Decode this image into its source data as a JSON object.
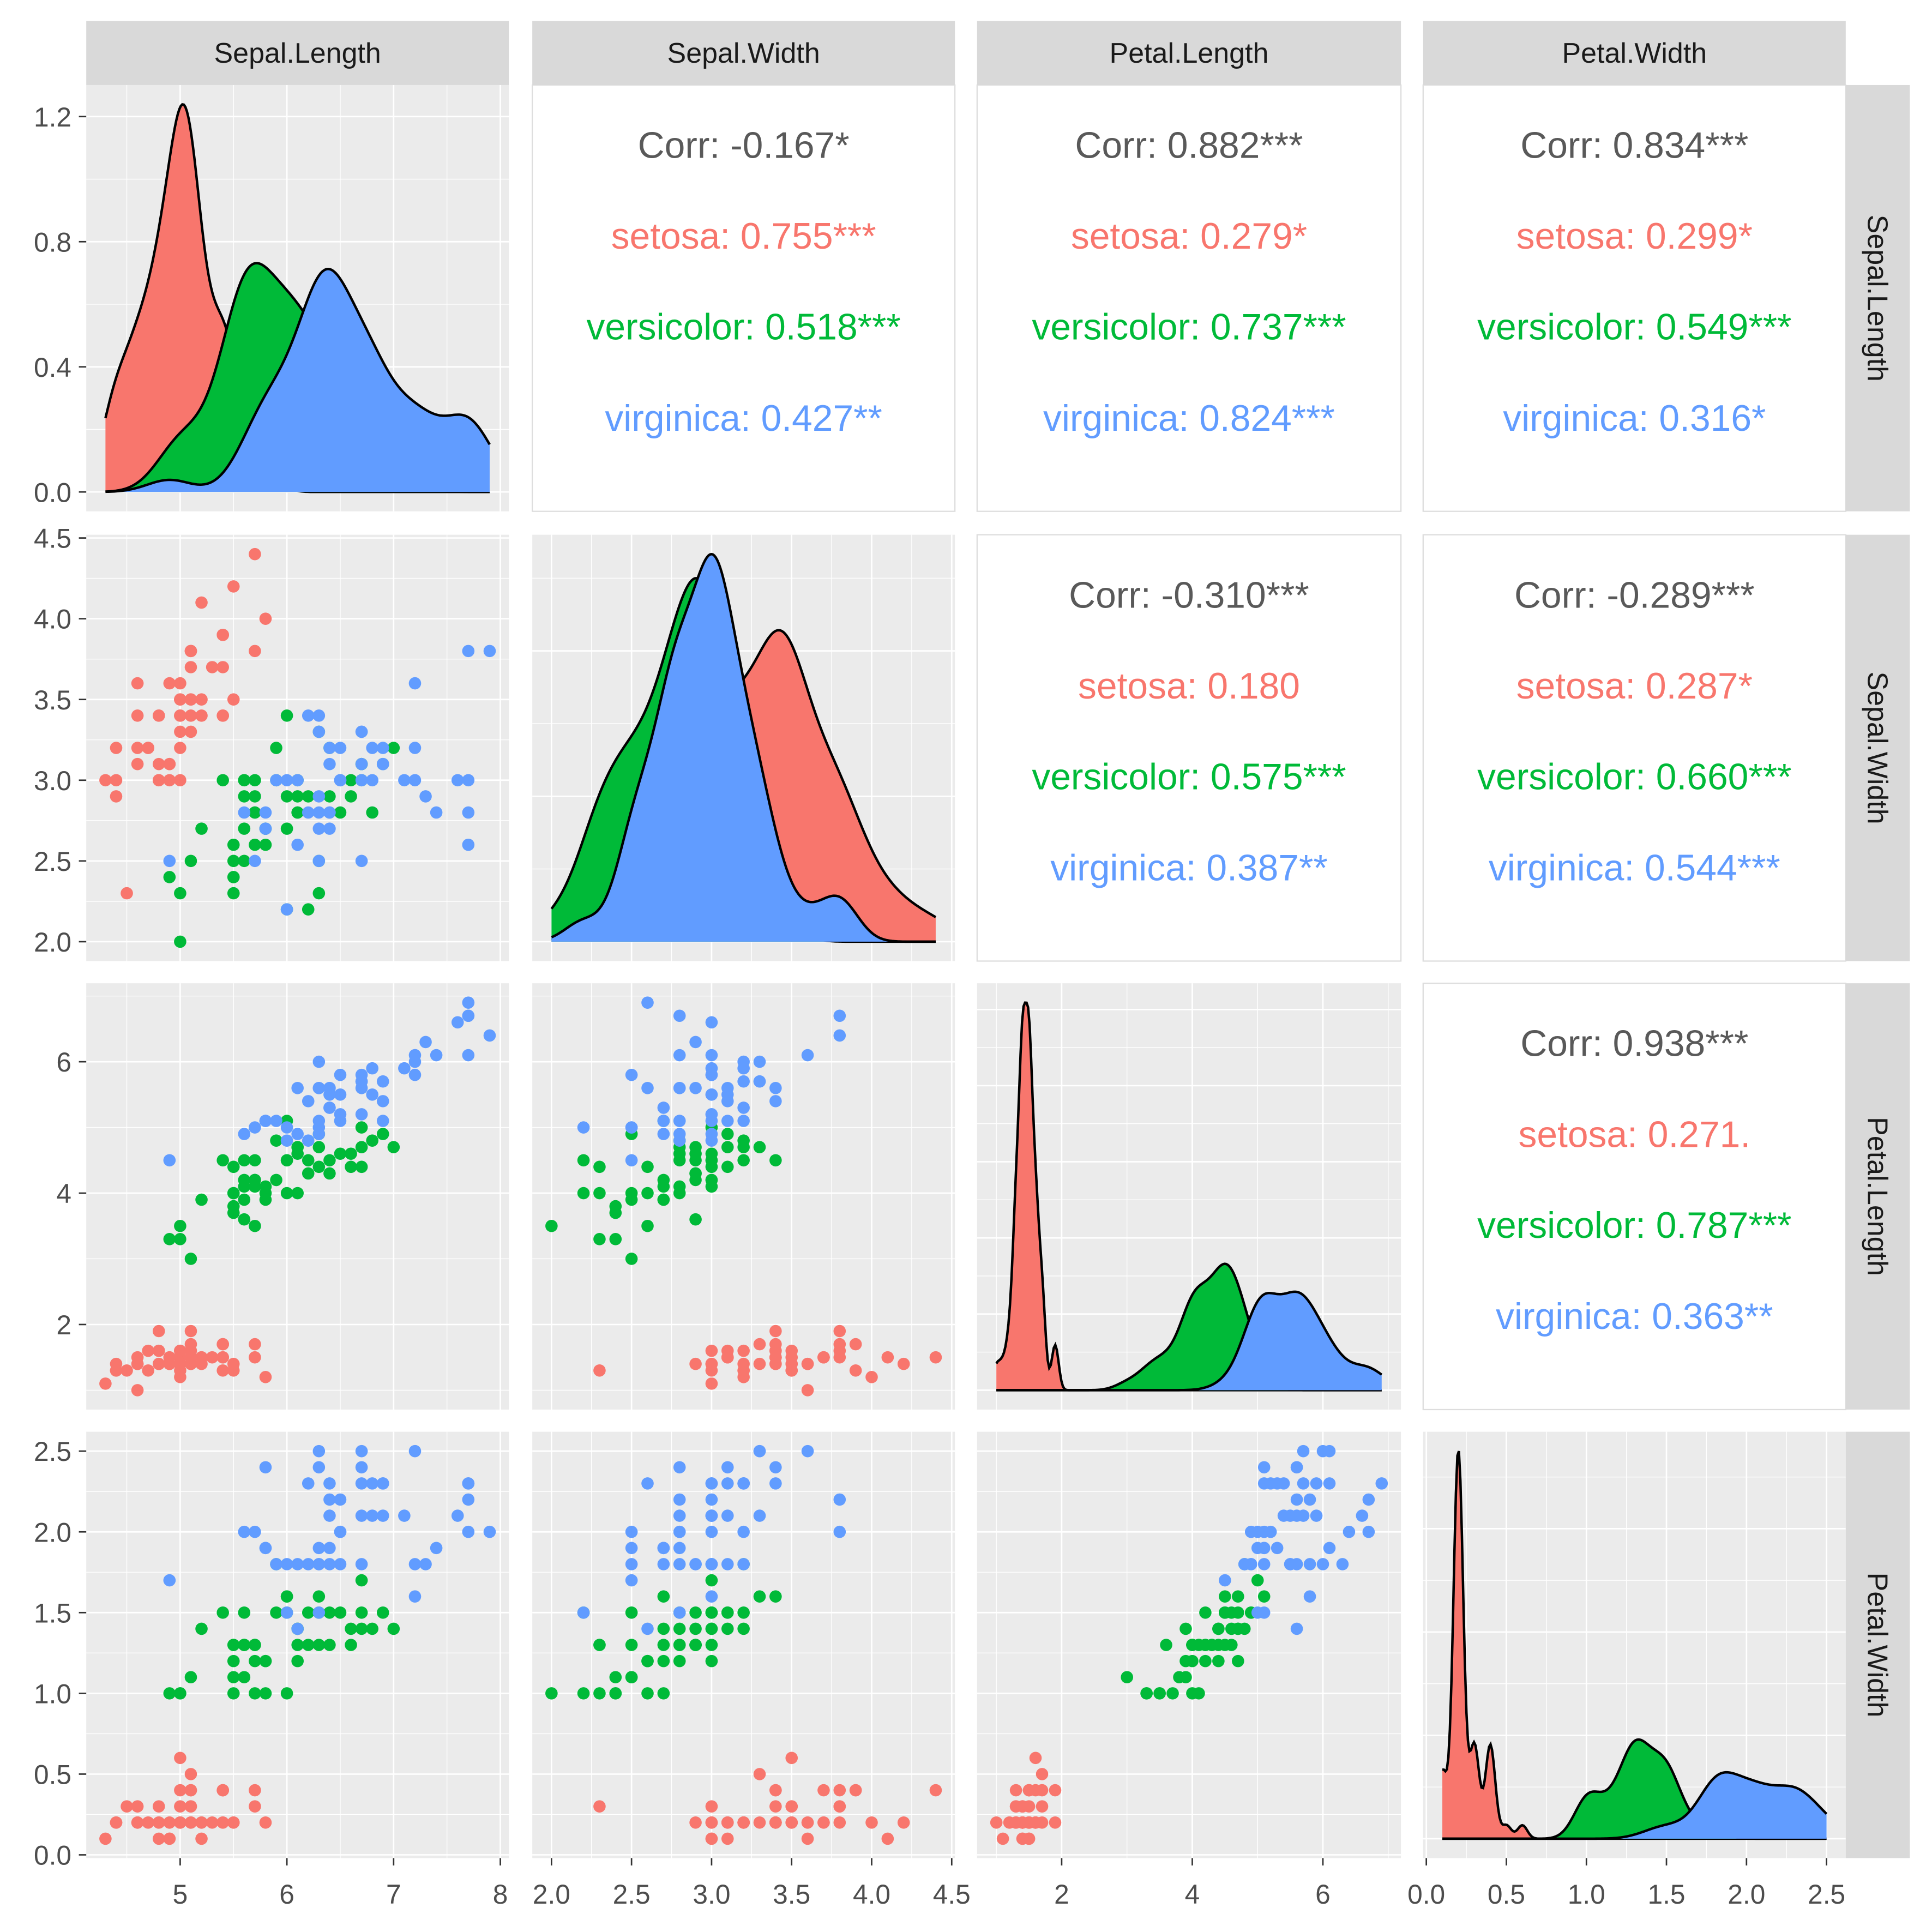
{
  "chart_data": {
    "type": "scatter-matrix",
    "variables": [
      "Sepal.Length",
      "Sepal.Width",
      "Petal.Length",
      "Petal.Width"
    ],
    "species_levels": [
      "setosa",
      "versicolor",
      "virginica"
    ],
    "colors": {
      "setosa": "#F8766D",
      "versicolor": "#00BA38",
      "virginica": "#619CFF",
      "corr_text": "#595959",
      "panel_bg": "#EBEBEB",
      "strip_bg": "#D9D9D9"
    },
    "diagonal": "density",
    "lower": "points",
    "upper": "correlation",
    "ticks": {
      "Sepal.Length": [
        "5",
        "6",
        "7",
        "8"
      ],
      "Sepal.Width": [
        "2.0",
        "2.5",
        "3.0",
        "3.5",
        "4.0",
        "4.5"
      ],
      "Petal.Length": [
        "2",
        "4",
        "6"
      ],
      "Petal.Width": [
        "0.0",
        "0.5",
        "1.0",
        "1.5",
        "2.0",
        "2.5"
      ],
      "density_top_left": [
        "0.0",
        "0.4",
        "0.8",
        "1.2"
      ]
    },
    "correlations": [
      {
        "row": "Sepal.Length",
        "col": "Sepal.Width",
        "lines": [
          "Corr: -0.167*",
          "setosa: 0.755***",
          "versicolor: 0.518***",
          "virginica: 0.427**"
        ]
      },
      {
        "row": "Sepal.Length",
        "col": "Petal.Length",
        "lines": [
          "Corr: 0.882***",
          "setosa: 0.279*",
          "versicolor: 0.737***",
          "virginica: 0.824***"
        ]
      },
      {
        "row": "Sepal.Length",
        "col": "Petal.Width",
        "lines": [
          "Corr: 0.834***",
          "setosa: 0.299*",
          "versicolor: 0.549***",
          "virginica: 0.316*"
        ]
      },
      {
        "row": "Sepal.Width",
        "col": "Petal.Length",
        "lines": [
          "Corr: -0.310***",
          "setosa: 0.180",
          "versicolor: 0.575***",
          "virginica: 0.387**"
        ]
      },
      {
        "row": "Sepal.Width",
        "col": "Petal.Width",
        "lines": [
          "Corr: -0.289***",
          "setosa: 0.287*",
          "versicolor: 0.660***",
          "virginica: 0.544***"
        ]
      },
      {
        "row": "Petal.Length",
        "col": "Petal.Width",
        "lines": [
          "Corr: 0.938***",
          "setosa: 0.271.",
          "versicolor: 0.787***",
          "virginica: 0.363**"
        ]
      }
    ],
    "observations": {
      "Sepal.Length": [
        5.1,
        4.9,
        4.7,
        4.6,
        5.0,
        5.4,
        4.6,
        5.0,
        4.4,
        4.9,
        5.4,
        4.8,
        4.8,
        4.3,
        5.8,
        5.7,
        5.4,
        5.1,
        5.7,
        5.1,
        5.4,
        5.1,
        4.6,
        5.1,
        4.8,
        5.0,
        5.0,
        5.2,
        5.2,
        4.7,
        4.8,
        5.4,
        5.2,
        5.5,
        4.9,
        5.0,
        5.5,
        4.9,
        4.4,
        5.1,
        5.0,
        4.5,
        4.4,
        5.0,
        5.1,
        4.8,
        5.1,
        4.6,
        5.3,
        5.0,
        7.0,
        6.4,
        6.9,
        5.5,
        6.5,
        5.7,
        6.3,
        4.9,
        6.6,
        5.2,
        5.0,
        5.9,
        6.0,
        6.1,
        5.6,
        6.7,
        5.6,
        5.8,
        6.2,
        5.6,
        5.9,
        6.1,
        6.3,
        6.1,
        6.4,
        6.6,
        6.8,
        6.7,
        6.0,
        5.7,
        5.5,
        5.5,
        5.8,
        6.0,
        5.4,
        6.0,
        6.7,
        6.3,
        5.6,
        5.5,
        5.5,
        6.1,
        5.8,
        5.0,
        5.6,
        5.7,
        5.7,
        6.2,
        5.1,
        5.7,
        6.3,
        5.8,
        7.1,
        6.3,
        6.5,
        7.6,
        4.9,
        7.3,
        6.7,
        7.2,
        6.5,
        6.4,
        6.8,
        5.7,
        5.8,
        6.4,
        6.5,
        7.7,
        7.7,
        6.0,
        6.9,
        5.6,
        7.7,
        6.3,
        6.7,
        7.2,
        6.2,
        6.1,
        6.4,
        7.2,
        7.4,
        7.9,
        6.4,
        6.3,
        6.1,
        7.7,
        6.3,
        6.4,
        6.0,
        6.9,
        6.7,
        6.9,
        5.8,
        6.8,
        6.7,
        6.7,
        6.3,
        6.5,
        6.2,
        5.9
      ],
      "Sepal.Width": [
        3.5,
        3.0,
        3.2,
        3.1,
        3.6,
        3.9,
        3.4,
        3.4,
        2.9,
        3.1,
        3.7,
        3.4,
        3.0,
        3.0,
        4.0,
        4.4,
        3.9,
        3.5,
        3.8,
        3.8,
        3.4,
        3.7,
        3.6,
        3.3,
        3.4,
        3.0,
        3.4,
        3.5,
        3.4,
        3.2,
        3.1,
        3.4,
        4.1,
        4.2,
        3.1,
        3.2,
        3.5,
        3.6,
        3.0,
        3.4,
        3.5,
        2.3,
        3.2,
        3.5,
        3.8,
        3.0,
        3.8,
        3.2,
        3.7,
        3.3,
        3.2,
        3.2,
        3.1,
        2.3,
        2.8,
        2.8,
        3.3,
        2.4,
        2.9,
        2.7,
        2.0,
        3.0,
        2.2,
        2.9,
        2.9,
        3.1,
        3.0,
        2.7,
        2.2,
        2.5,
        3.2,
        2.8,
        2.5,
        2.8,
        2.9,
        3.0,
        2.8,
        3.0,
        2.9,
        2.6,
        2.4,
        2.4,
        2.7,
        2.7,
        3.0,
        3.4,
        3.1,
        2.3,
        3.0,
        2.5,
        2.6,
        3.0,
        2.6,
        2.3,
        2.7,
        3.0,
        2.9,
        2.9,
        2.5,
        2.8,
        3.3,
        2.7,
        3.0,
        2.9,
        3.0,
        3.0,
        2.5,
        2.9,
        2.5,
        3.6,
        3.2,
        2.7,
        3.0,
        2.5,
        2.8,
        3.2,
        3.0,
        3.8,
        2.6,
        2.2,
        3.2,
        2.8,
        2.8,
        2.7,
        3.3,
        3.2,
        2.8,
        3.0,
        2.8,
        3.0,
        2.8,
        3.8,
        2.8,
        2.8,
        2.6,
        3.0,
        3.4,
        3.1,
        3.0,
        3.1,
        3.1,
        3.1,
        2.7,
        3.2,
        3.3,
        3.0,
        2.5,
        3.0,
        3.4,
        3.0
      ],
      "Petal.Length": [
        1.4,
        1.4,
        1.3,
        1.5,
        1.4,
        1.7,
        1.4,
        1.5,
        1.4,
        1.5,
        1.5,
        1.6,
        1.4,
        1.1,
        1.2,
        1.5,
        1.3,
        1.4,
        1.7,
        1.5,
        1.7,
        1.5,
        1.0,
        1.7,
        1.9,
        1.6,
        1.6,
        1.5,
        1.4,
        1.6,
        1.6,
        1.5,
        1.5,
        1.4,
        1.5,
        1.2,
        1.3,
        1.4,
        1.3,
        1.5,
        1.3,
        1.3,
        1.3,
        1.6,
        1.9,
        1.4,
        1.6,
        1.4,
        1.5,
        1.4,
        4.7,
        4.5,
        4.9,
        4.0,
        4.6,
        4.5,
        4.7,
        3.3,
        4.6,
        3.9,
        3.5,
        4.2,
        4.0,
        4.7,
        3.6,
        4.4,
        4.5,
        4.1,
        4.5,
        3.9,
        4.8,
        4.0,
        4.9,
        4.7,
        4.3,
        4.4,
        4.8,
        5.0,
        4.5,
        3.5,
        3.8,
        3.7,
        3.9,
        5.1,
        4.5,
        4.5,
        4.7,
        4.4,
        4.1,
        4.0,
        4.4,
        4.6,
        4.0,
        3.3,
        4.2,
        4.2,
        4.2,
        4.3,
        3.0,
        4.1,
        6.0,
        5.1,
        5.9,
        5.6,
        5.8,
        6.6,
        4.5,
        6.3,
        5.8,
        6.1,
        5.1,
        5.3,
        5.5,
        5.0,
        5.1,
        5.3,
        5.5,
        6.7,
        6.9,
        5.0,
        5.7,
        4.9,
        6.7,
        4.9,
        5.7,
        6.0,
        4.8,
        4.9,
        5.6,
        5.8,
        6.1,
        6.4,
        5.6,
        5.1,
        5.6,
        6.1,
        5.6,
        5.5,
        4.8,
        5.4,
        5.6,
        5.1,
        5.1,
        5.9,
        5.7,
        5.2,
        5.0,
        5.2,
        5.4,
        5.1
      ],
      "Petal.Width": [
        0.2,
        0.2,
        0.2,
        0.2,
        0.2,
        0.4,
        0.3,
        0.2,
        0.2,
        0.1,
        0.2,
        0.2,
        0.1,
        0.1,
        0.2,
        0.4,
        0.4,
        0.3,
        0.3,
        0.3,
        0.2,
        0.4,
        0.2,
        0.5,
        0.2,
        0.2,
        0.4,
        0.2,
        0.2,
        0.2,
        0.2,
        0.4,
        0.1,
        0.2,
        0.2,
        0.2,
        0.2,
        0.1,
        0.2,
        0.2,
        0.3,
        0.3,
        0.2,
        0.6,
        0.4,
        0.3,
        0.2,
        0.2,
        0.2,
        0.2,
        1.4,
        1.5,
        1.5,
        1.3,
        1.5,
        1.3,
        1.6,
        1.0,
        1.3,
        1.4,
        1.0,
        1.5,
        1.0,
        1.4,
        1.3,
        1.4,
        1.5,
        1.0,
        1.5,
        1.1,
        1.8,
        1.3,
        1.5,
        1.2,
        1.3,
        1.4,
        1.4,
        1.7,
        1.5,
        1.0,
        1.1,
        1.0,
        1.2,
        1.6,
        1.5,
        1.6,
        1.5,
        1.3,
        1.3,
        1.3,
        1.2,
        1.4,
        1.2,
        1.0,
        1.3,
        1.2,
        1.3,
        1.3,
        1.1,
        1.3,
        2.5,
        1.9,
        2.1,
        1.8,
        2.2,
        2.1,
        1.7,
        1.8,
        1.8,
        2.5,
        2.0,
        1.9,
        2.1,
        2.0,
        2.4,
        2.3,
        1.8,
        2.2,
        2.3,
        1.5,
        2.3,
        2.0,
        2.0,
        1.8,
        2.1,
        1.8,
        1.8,
        1.8,
        2.1,
        1.6,
        1.9,
        2.0,
        2.2,
        1.5,
        1.4,
        2.3,
        2.4,
        1.8,
        1.8,
        2.1,
        2.4,
        2.3,
        1.9,
        2.3,
        2.5,
        2.3,
        1.9,
        2.0,
        2.3,
        1.8
      ]
    },
    "species_counts": {
      "setosa": 50,
      "versicolor": 50,
      "virginica": 50
    }
  }
}
